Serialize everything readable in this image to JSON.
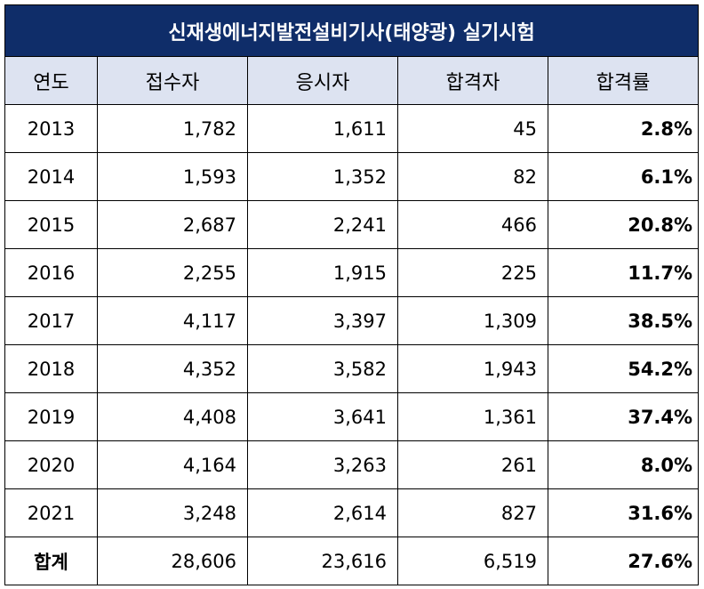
{
  "title": "신재생에너지발전설비기사(태양광) 실기시험",
  "headers": [
    "연도",
    "접수자",
    "응시자",
    "합격자",
    "합격률"
  ],
  "rows": [
    {
      "year": "2013",
      "applicants": "1,782",
      "examinees": "1,611",
      "passers": "45",
      "rate": "2.8%"
    },
    {
      "year": "2014",
      "applicants": "1,593",
      "examinees": "1,352",
      "passers": "82",
      "rate": "6.1%"
    },
    {
      "year": "2015",
      "applicants": "2,687",
      "examinees": "2,241",
      "passers": "466",
      "rate": "20.8%"
    },
    {
      "year": "2016",
      "applicants": "2,255",
      "examinees": "1,915",
      "passers": "225",
      "rate": "11.7%"
    },
    {
      "year": "2017",
      "applicants": "4,117",
      "examinees": "3,397",
      "passers": "1,309",
      "rate": "38.5%"
    },
    {
      "year": "2018",
      "applicants": "4,352",
      "examinees": "3,582",
      "passers": "1,943",
      "rate": "54.2%"
    },
    {
      "year": "2019",
      "applicants": "4,408",
      "examinees": "3,641",
      "passers": "1,361",
      "rate": "37.4%"
    },
    {
      "year": "2020",
      "applicants": "4,164",
      "examinees": "3,263",
      "passers": "261",
      "rate": "8.0%"
    },
    {
      "year": "2021",
      "applicants": "3,248",
      "examinees": "2,614",
      "passers": "827",
      "rate": "31.6%"
    }
  ],
  "total": {
    "label": "합계",
    "applicants": "28,606",
    "examinees": "23,616",
    "passers": "6,519",
    "rate": "27.6%"
  },
  "colors": {
    "title_bg": "#0f2d69",
    "header_bg": "#dde3f1"
  }
}
